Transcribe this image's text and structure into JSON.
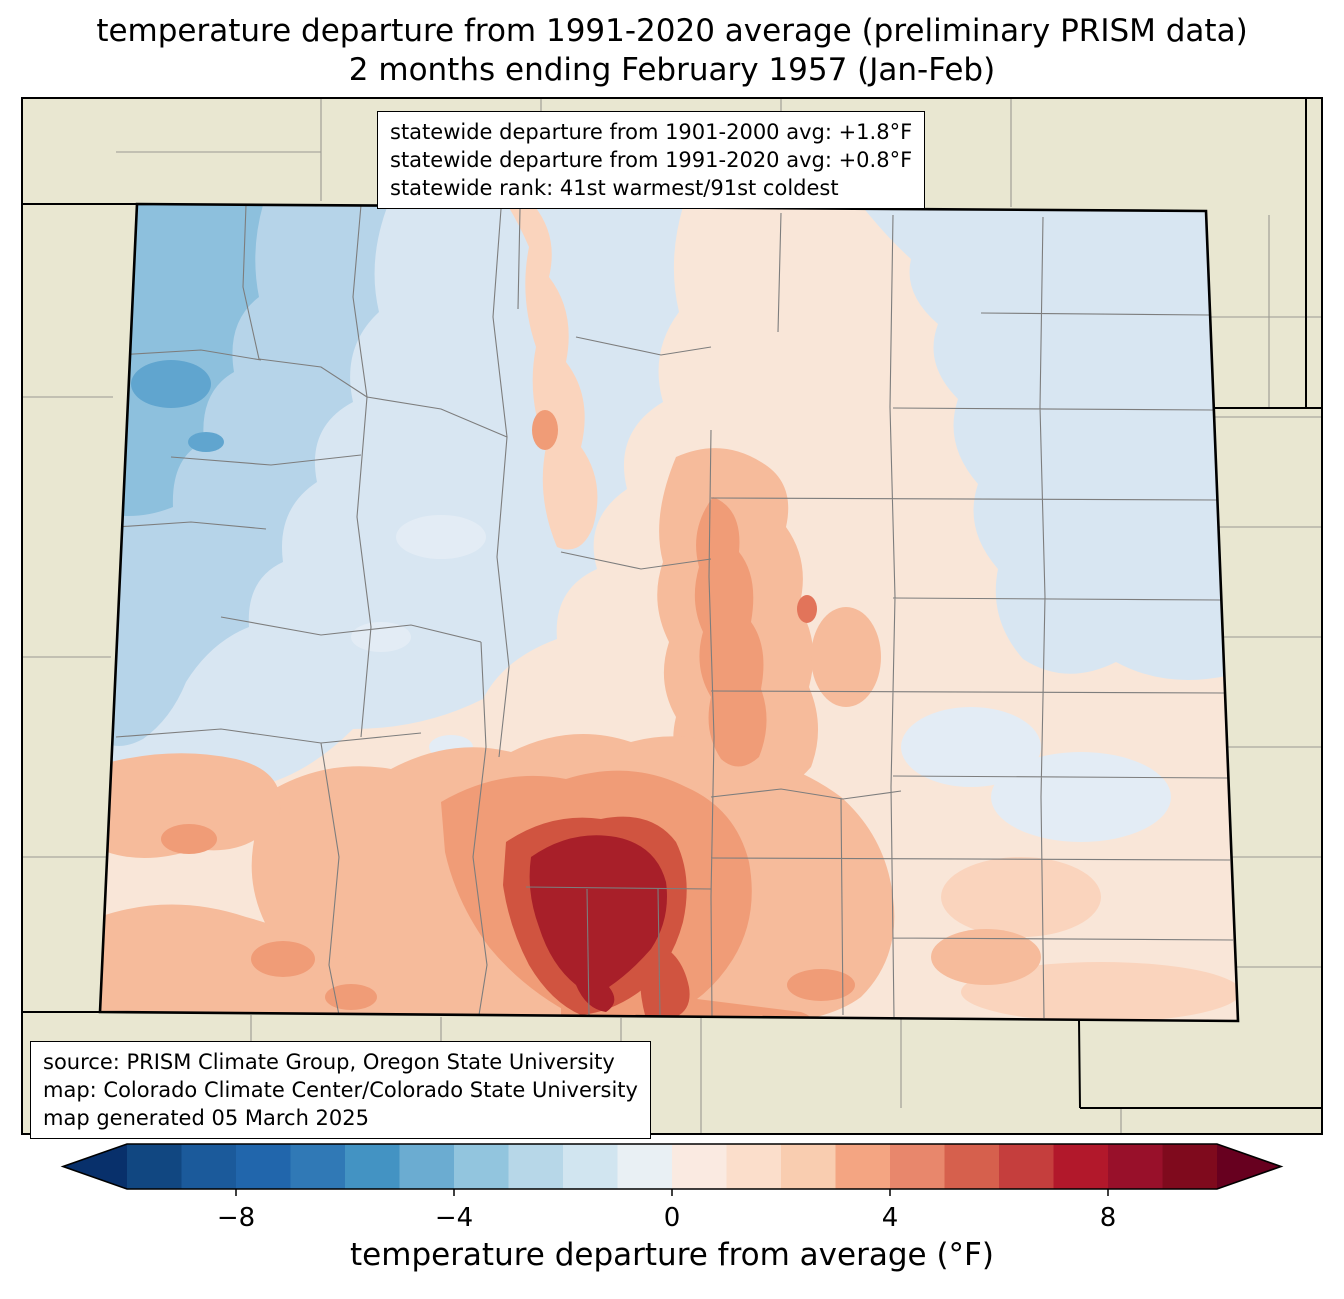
{
  "title": {
    "line1": "temperature departure from 1991-2020 average (preliminary PRISM data)",
    "line2": "2 months ending February 1957 (Jan-Feb)"
  },
  "stats_box": {
    "line1": "statewide departure from 1901-2000 avg: +1.8°F",
    "line2": "statewide departure from 1991-2020 avg: +0.8°F",
    "line3": "statewide rank: 41st warmest/91st coldest"
  },
  "source_box": {
    "line1": "source: PRISM Climate Group, Oregon State University",
    "line2": "map: Colorado Climate Center/Colorado State University",
    "line3": "map generated 05 March 2025"
  },
  "map": {
    "state": "Colorado",
    "outside_fill": "#e9e7d1",
    "state_border_color": "#000000",
    "county_line_color": "#7d7d7d",
    "statewide_departure_1901_2000_F": 1.8,
    "statewide_departure_1991_2020_F": 0.8,
    "statewide_rank_warmest": 41,
    "statewide_rank_coldest": 91
  },
  "colorbar": {
    "label": "temperature departure from average (°F)",
    "range": [
      -10,
      10
    ],
    "ticks": [
      {
        "value": -8,
        "label": "−8"
      },
      {
        "value": -4,
        "label": "−4"
      },
      {
        "value": 0,
        "label": "0"
      },
      {
        "value": 4,
        "label": "4"
      },
      {
        "value": 8,
        "label": "8"
      }
    ],
    "segment_colors": [
      "#114781",
      "#1b5a9b",
      "#2166ac",
      "#3079b6",
      "#4393c3",
      "#6bacd1",
      "#92c5de",
      "#b7d7e8",
      "#d1e5f0",
      "#e9f0f4",
      "#faeae1",
      "#fbdecb",
      "#f9cdb0",
      "#f4a582",
      "#e8876c",
      "#d6604d",
      "#c53e3d",
      "#b2182b",
      "#98102a",
      "#7f0a1d"
    ],
    "left_arrow_color": "#08306b",
    "right_arrow_color": "#67001f"
  }
}
